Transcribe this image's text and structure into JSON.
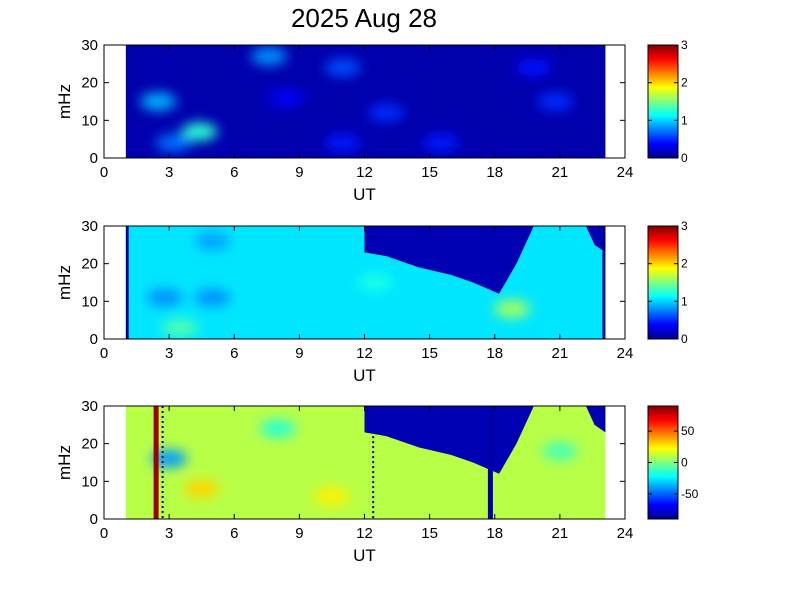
{
  "chart_data": [
    {
      "type": "heatmap",
      "title": "2025 Aug 28",
      "xlabel": "UT",
      "ylabel": "mHz",
      "xlim": [
        0,
        24
      ],
      "ylim": [
        0,
        30
      ],
      "xticks": [
        "0",
        "3",
        "6",
        "9",
        "12",
        "15",
        "18",
        "21",
        "24"
      ],
      "yticks": [
        "0",
        "10",
        "20",
        "30"
      ],
      "data_range_ut": [
        1.0,
        23.1
      ],
      "colorbar": {
        "min": 0,
        "max": 3,
        "ticks": [
          "0",
          "1",
          "2",
          "3"
        ]
      },
      "colormap": "jet",
      "background_level": 0.1,
      "features": [
        {
          "ut": 4.4,
          "mhz": 7,
          "level": 1.25
        },
        {
          "ut": 2.5,
          "mhz": 15,
          "level": 0.9
        },
        {
          "ut": 3.2,
          "mhz": 4,
          "level": 0.7
        },
        {
          "ut": 7.6,
          "mhz": 27,
          "level": 0.8
        },
        {
          "ut": 11.0,
          "mhz": 24,
          "level": 0.6
        },
        {
          "ut": 13.0,
          "mhz": 12,
          "level": 0.5
        },
        {
          "ut": 11.0,
          "mhz": 4,
          "level": 0.45
        },
        {
          "ut": 15.5,
          "mhz": 4,
          "level": 0.45
        },
        {
          "ut": 20.8,
          "mhz": 15,
          "level": 0.5
        },
        {
          "ut": 19.8,
          "mhz": 24,
          "level": 0.4
        },
        {
          "ut": 8.4,
          "mhz": 16,
          "level": 0.35
        }
      ]
    },
    {
      "type": "heatmap",
      "title": "",
      "xlabel": "UT",
      "ylabel": "mHz",
      "xlim": [
        0,
        24
      ],
      "ylim": [
        0,
        30
      ],
      "xticks": [
        "0",
        "3",
        "6",
        "9",
        "12",
        "15",
        "18",
        "21",
        "24"
      ],
      "yticks": [
        "0",
        "10",
        "20",
        "30"
      ],
      "data_range_ut": [
        1.0,
        23.1
      ],
      "colorbar": {
        "min": 0,
        "max": 3,
        "ticks": [
          "0",
          "1",
          "2",
          "3"
        ]
      },
      "colormap": "jet",
      "background_level": 1.05,
      "masked_region_upper_boundary_mhz": [
        [
          12,
          30
        ],
        [
          12,
          23
        ],
        [
          13,
          22
        ],
        [
          14.5,
          19
        ],
        [
          16,
          17
        ],
        [
          17,
          15
        ],
        [
          18.2,
          12
        ],
        [
          19,
          20
        ],
        [
          19.8,
          30
        ]
      ],
      "masked_corner": [
        [
          22.2,
          30
        ],
        [
          22.6,
          25
        ],
        [
          23.1,
          23
        ],
        [
          23.1,
          30
        ]
      ],
      "features": [
        {
          "ut": 2.8,
          "mhz": 11,
          "level": 0.8
        },
        {
          "ut": 5.0,
          "mhz": 11,
          "level": 0.8
        },
        {
          "ut": 5.0,
          "mhz": 26,
          "level": 0.85
        },
        {
          "ut": 3.5,
          "mhz": 3,
          "level": 1.35
        },
        {
          "ut": 18.8,
          "mhz": 8,
          "level": 1.6
        },
        {
          "ut": 12.5,
          "mhz": 15,
          "level": 1.2
        }
      ]
    },
    {
      "type": "heatmap",
      "title": "",
      "xlabel": "UT",
      "ylabel": "mHz",
      "xlim": [
        0,
        24
      ],
      "ylim": [
        0,
        30
      ],
      "xticks": [
        "0",
        "3",
        "6",
        "9",
        "12",
        "15",
        "18",
        "21",
        "24"
      ],
      "yticks": [
        "0",
        "10",
        "20",
        "30"
      ],
      "data_range_ut": [
        1.0,
        23.1
      ],
      "colorbar": {
        "min": -90,
        "max": 90,
        "ticks": [
          "50",
          "0",
          "-50"
        ],
        "tick_values": [
          50,
          0,
          -50
        ]
      },
      "colormap": "jet",
      "background_level": 10,
      "masked_region_upper_boundary_mhz": [
        [
          12,
          30
        ],
        [
          12,
          23
        ],
        [
          13,
          22
        ],
        [
          14.5,
          19
        ],
        [
          16,
          17
        ],
        [
          17,
          15
        ],
        [
          18.2,
          12
        ],
        [
          19,
          20
        ],
        [
          19.8,
          30
        ]
      ],
      "masked_corner": [
        [
          22.2,
          30
        ],
        [
          22.6,
          25
        ],
        [
          23.1,
          23
        ],
        [
          23.1,
          30
        ]
      ],
      "vertical_lines": [
        {
          "ut": 2.4,
          "level": 85
        },
        {
          "ut": 17.8,
          "level": -85
        }
      ],
      "dotted_lines": [
        {
          "ut": 2.7,
          "mhz_from": 0,
          "mhz_to": 30
        },
        {
          "ut": 12.4,
          "mhz_from": 0,
          "mhz_to": 22
        }
      ],
      "features": [
        {
          "ut": 3.0,
          "mhz": 16,
          "level": -40
        },
        {
          "ut": 8.0,
          "mhz": 24,
          "level": -15
        },
        {
          "ut": 4.5,
          "mhz": 8,
          "level": 30
        },
        {
          "ut": 10.5,
          "mhz": 6,
          "level": 25
        },
        {
          "ut": 21.0,
          "mhz": 18,
          "level": -10
        }
      ]
    }
  ]
}
